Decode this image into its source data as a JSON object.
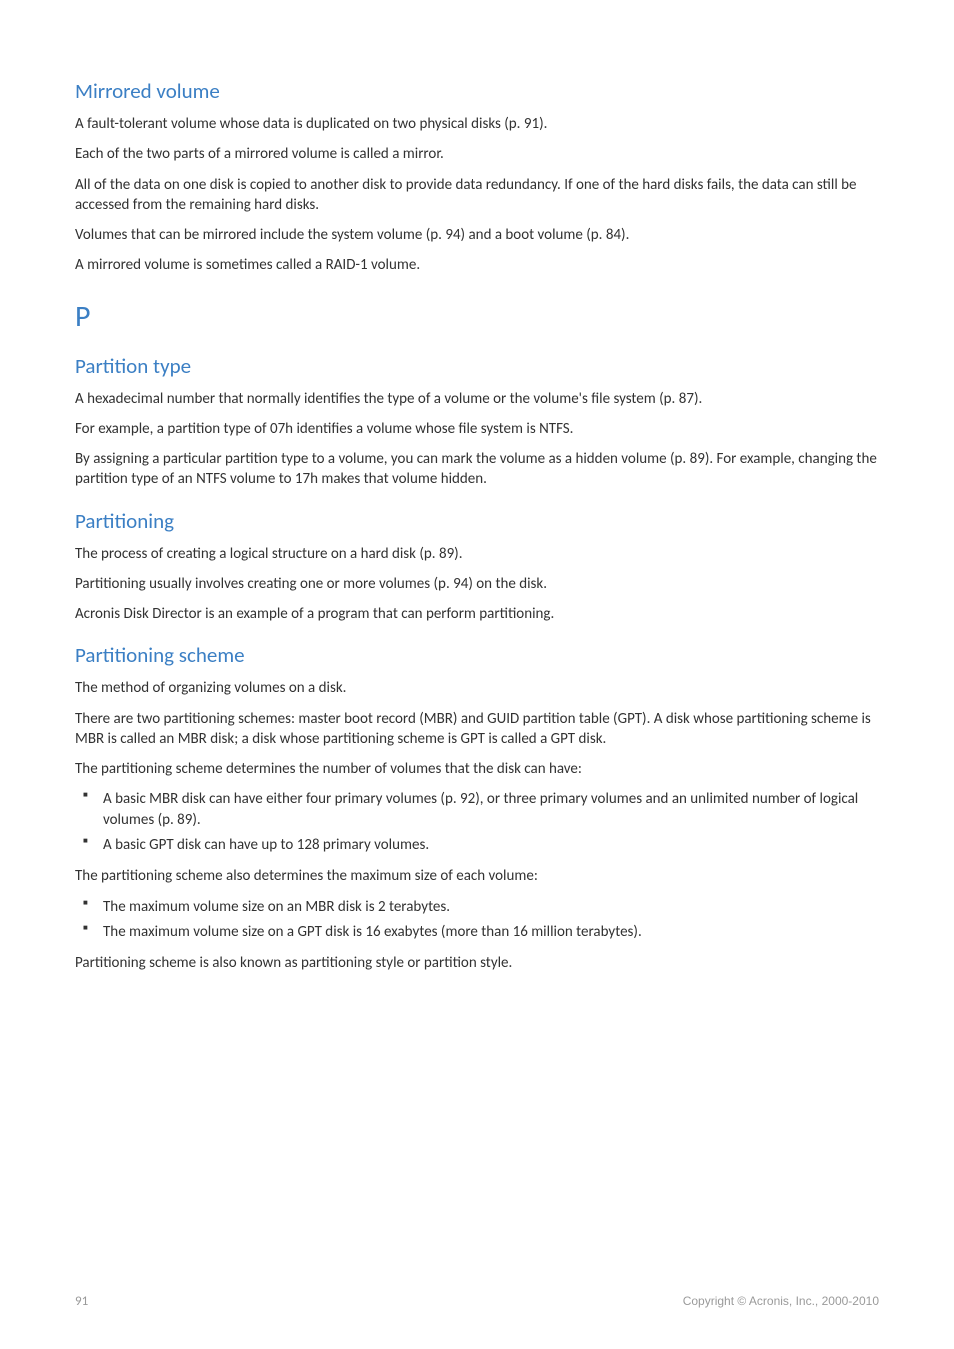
{
  "sections": {
    "mirrored": {
      "title": "Mirrored volume",
      "p1": "A fault-tolerant volume whose data is duplicated on two physical disks (p. 91).",
      "p2": "Each of the two parts of a mirrored volume is called a mirror.",
      "p3": "All of the data on one disk is copied to another disk to provide data redundancy. If one of the hard disks fails, the data can still be accessed from the remaining hard disks.",
      "p4": "Volumes that can be mirrored include the system volume (p. 94) and a boot volume (p. 84).",
      "p5": "A mirrored volume is sometimes called a RAID-1 volume."
    },
    "letter_p": "P",
    "ptype": {
      "title": "Partition type",
      "p1": "A hexadecimal number that normally identifies the type of a volume or the volume's file system (p. 87).",
      "p2": "For example, a partition type of 07h identifies a volume whose file system is NTFS.",
      "p3": "By assigning a particular partition type to a volume, you can mark the volume as a hidden volume (p. 89). For example, changing the partition type of an NTFS volume to 17h makes that volume hidden."
    },
    "partitioning": {
      "title": "Partitioning",
      "p1": "The process of creating a logical structure on a hard disk (p. 89).",
      "p2": "Partitioning usually involves creating one or more volumes (p. 94) on the disk.",
      "p3": "Acronis Disk Director is an example of a program that can perform partitioning."
    },
    "pscheme": {
      "title": "Partitioning scheme",
      "p1": "The method of organizing volumes on a disk.",
      "p2": "There are two partitioning schemes: master boot record (MBR) and GUID partition table (GPT). A disk whose partitioning scheme is MBR is called an MBR disk; a disk whose partitioning scheme is GPT is called a GPT disk.",
      "p3": "The partitioning scheme determines the number of volumes that the disk can have:",
      "b1": "A basic MBR disk can have either four primary volumes (p. 92), or three primary volumes and an unlimited number of logical volumes (p. 89).",
      "b2": "A basic GPT disk can have up to 128 primary volumes.",
      "p4": "The partitioning scheme also determines the maximum size of each volume:",
      "b3": "The maximum volume size on an MBR disk is 2 terabytes.",
      "b4": "The maximum volume size on a GPT disk is 16 exabytes (more than 16 million terabytes).",
      "p5": "Partitioning scheme is also known as partitioning style or partition style."
    }
  },
  "footer": {
    "page": "91",
    "copyright": "Copyright © Acronis, Inc., 2000-2010"
  },
  "style": {
    "heading_color": "#3b7fc4",
    "body_color": "#323232",
    "footer_color": "#9a9a9a",
    "background": "#ffffff",
    "heading_fontsize_pt": 16,
    "letter_fontsize_pt": 22,
    "body_fontsize_pt": 11,
    "footer_fontsize_pt": 9
  }
}
